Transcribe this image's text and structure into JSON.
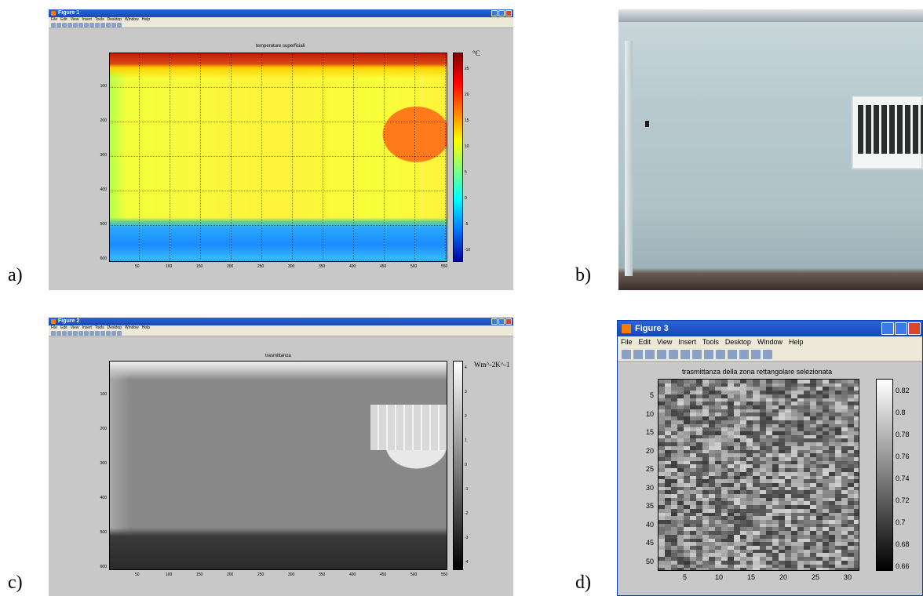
{
  "panel_labels": {
    "a": "a)",
    "b": "b)",
    "c": "c)",
    "d": "d)"
  },
  "menu": [
    "File",
    "Edit",
    "View",
    "Insert",
    "Tools",
    "Desktop",
    "Window",
    "Help"
  ],
  "fig1": {
    "window_title": "Figure 1",
    "plot_title": "temperature superficiali",
    "unit": "°C",
    "yticks": [
      "100",
      "200",
      "300",
      "400",
      "500",
      "600"
    ],
    "xticks": [
      "50",
      "100",
      "150",
      "200",
      "250",
      "300",
      "350",
      "400",
      "450",
      "500",
      "550"
    ],
    "cticks": [
      "25",
      "20",
      "15",
      "10",
      "5",
      "0",
      "-5",
      "-10"
    ],
    "colormap": "jet"
  },
  "fig2": {
    "window_title": "Figure 2",
    "plot_title": "trasmittanza",
    "unit": "Wm^-2K^-1",
    "yticks": [
      "100",
      "200",
      "300",
      "400",
      "500",
      "600"
    ],
    "xticks": [
      "50",
      "100",
      "150",
      "200",
      "250",
      "300",
      "350",
      "400",
      "450",
      "500",
      "550"
    ],
    "cticks": [
      "4",
      "3",
      "2",
      "1",
      "0",
      "-1",
      "-2",
      "-3",
      "-4"
    ],
    "colormap": "gray"
  },
  "fig3": {
    "window_title": "Figure 3",
    "plot_title": "trasmittanza della zona rettangolare selezionata",
    "yticks": [
      "5",
      "10",
      "15",
      "20",
      "25",
      "30",
      "35",
      "40",
      "45",
      "50"
    ],
    "xticks": [
      "5",
      "10",
      "15",
      "20",
      "25",
      "30"
    ],
    "cticks": [
      "0.82",
      "0.8",
      "0.78",
      "0.76",
      "0.74",
      "0.72",
      "0.7",
      "0.68",
      "0.66"
    ],
    "colormap": "gray"
  }
}
